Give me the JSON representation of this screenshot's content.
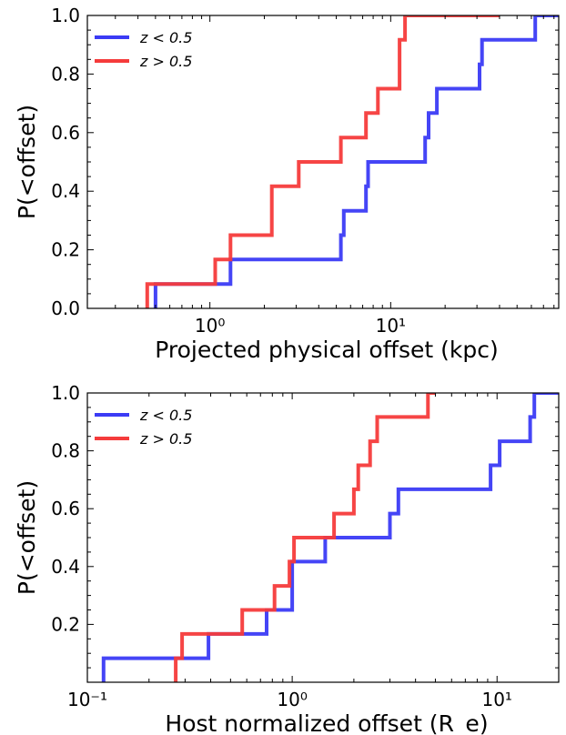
{
  "chart_data": [
    {
      "type": "line",
      "step": "post",
      "xlabel": "Projected physical offset (kpc)",
      "ylabel": "P(<offset)",
      "xscale": "log",
      "xlim": [
        0.21,
        85
      ],
      "ylim": [
        0.0,
        1.0
      ],
      "xticks": [
        {
          "value": 1,
          "label": "10⁰"
        },
        {
          "value": 10,
          "label": "10¹"
        }
      ],
      "yticks": [
        {
          "value": 0.0,
          "label": "0.0"
        },
        {
          "value": 0.2,
          "label": "0.2"
        },
        {
          "value": 0.4,
          "label": "0.4"
        },
        {
          "value": 0.6,
          "label": "0.6"
        },
        {
          "value": 0.8,
          "label": "0.8"
        },
        {
          "value": 1.0,
          "label": "1.0"
        }
      ],
      "grid": false,
      "legend_position": "top-left",
      "legend": [
        "z < 0.5",
        "z > 0.5"
      ],
      "series": [
        {
          "name": "z < 0.5",
          "color": "#3b3bf5",
          "x": [
            0.5,
            1.3,
            5.3,
            5.5,
            7.3,
            7.5,
            15.5,
            16.2,
            18,
            31,
            32,
            63,
            90
          ],
          "y": [
            0.083,
            0.167,
            0.25,
            0.333,
            0.417,
            0.5,
            0.583,
            0.667,
            0.75,
            0.833,
            0.917,
            1.0,
            1.0
          ]
        },
        {
          "name": "z > 0.5",
          "color": "#f53b3b",
          "x": [
            0.45,
            1.07,
            1.3,
            2.2,
            3.1,
            5.3,
            7.3,
            8.5,
            11.2,
            12,
            40
          ],
          "y": [
            0.083,
            0.167,
            0.25,
            0.417,
            0.5,
            0.583,
            0.667,
            0.75,
            0.917,
            1.0,
            1.0
          ]
        }
      ]
    },
    {
      "type": "line",
      "step": "post",
      "xlabel": "Host normalized offset (R_e)",
      "ylabel": "P(<offset)",
      "xscale": "log",
      "xlim": [
        0.1,
        20
      ],
      "ylim": [
        0.0,
        1.0
      ],
      "xticks": [
        {
          "value": 0.1,
          "label": "10⁻¹"
        },
        {
          "value": 1,
          "label": "10⁰"
        },
        {
          "value": 10,
          "label": "10¹"
        }
      ],
      "yticks": [
        {
          "value": 0.2,
          "label": "0.2"
        },
        {
          "value": 0.4,
          "label": "0.4"
        },
        {
          "value": 0.6,
          "label": "0.6"
        },
        {
          "value": 0.8,
          "label": "0.8"
        },
        {
          "value": 1.0,
          "label": "1.0"
        }
      ],
      "grid": false,
      "legend_position": "top-left",
      "legend": [
        "z < 0.5",
        "z > 0.5"
      ],
      "series": [
        {
          "name": "z < 0.5",
          "color": "#3b3bf5",
          "x": [
            0.12,
            0.39,
            0.75,
            1.0,
            1.45,
            3.0,
            3.3,
            9.3,
            10.3,
            14.5,
            15.2,
            20
          ],
          "y": [
            0.083,
            0.167,
            0.25,
            0.417,
            0.5,
            0.583,
            0.667,
            0.75,
            0.833,
            0.917,
            1.0,
            1.0
          ]
        },
        {
          "name": "z > 0.5",
          "color": "#f53b3b",
          "x": [
            0.27,
            0.29,
            0.57,
            0.82,
            0.97,
            1.02,
            1.6,
            2.0,
            2.1,
            2.4,
            2.6,
            4.6,
            5.0
          ],
          "y": [
            0.083,
            0.167,
            0.25,
            0.333,
            0.417,
            0.5,
            0.583,
            0.667,
            0.75,
            0.833,
            0.917,
            1.0,
            1.0
          ]
        }
      ]
    }
  ]
}
